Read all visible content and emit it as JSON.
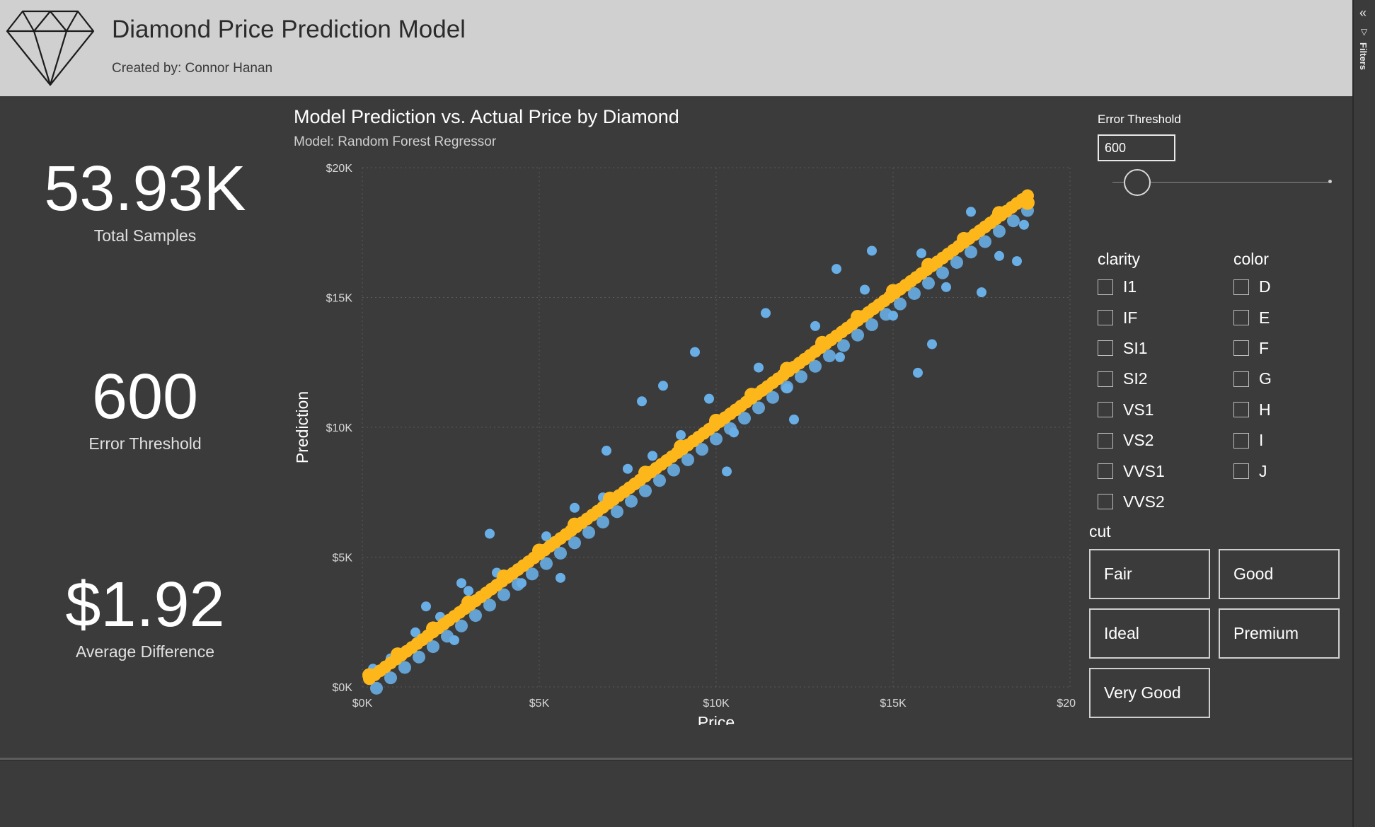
{
  "header": {
    "title": "Diamond Price Prediction Model",
    "subtitle": "Created by: Connor Hanan",
    "logo_icon": "diamond-icon"
  },
  "filters_rail": {
    "label": "Filters",
    "collapse_icon": "double-chevron-left-icon",
    "funnel_icon": "funnel-icon"
  },
  "kpis": [
    {
      "value": "53.93K",
      "label": "Total Samples"
    },
    {
      "value": "600",
      "label": "Error Threshold"
    },
    {
      "value": "$1.92",
      "label": "Average Difference"
    }
  ],
  "chart": {
    "title": "Model Prediction vs. Actual Price by Diamond",
    "subtitle": "Model: Random Forest Regressor"
  },
  "chart_data": {
    "type": "scatter",
    "title": "Model Prediction vs. Actual Price by Diamond",
    "subtitle": "Model: Random Forest Regressor",
    "xlabel": "Price",
    "ylabel": "Prediction",
    "xlim": [
      0,
      20000
    ],
    "ylim": [
      0,
      20000
    ],
    "x_ticks": [
      "$0K",
      "$5K",
      "$10K",
      "$15K",
      "$20K"
    ],
    "y_ticks": [
      "$0K",
      "$5K",
      "$10K",
      "$15K",
      "$20K"
    ],
    "grid": true,
    "colors": {
      "outside_threshold": "#6aaee6",
      "within_threshold": "#fdb71a"
    },
    "series": [
      {
        "x": [
          300,
          800,
          1500,
          2200,
          3000,
          3800,
          4500,
          5200,
          6000,
          6800,
          7500,
          8200,
          9000,
          9800,
          10500,
          11200,
          12000,
          12800,
          13500,
          14200,
          15000,
          15800,
          16500,
          17200,
          18000,
          18700,
          2800,
          3600,
          5600,
          4300,
          9400,
          8500,
          10300,
          12200,
          14400,
          17500,
          18500,
          15700,
          11400,
          6900,
          1800,
          2600,
          13400,
          16100,
          7900
        ],
        "y": [
          700,
          1100,
          2100,
          2700,
          3700,
          4400,
          4000,
          5800,
          6900,
          7300,
          8400,
          8900,
          9700,
          11100,
          9800,
          12300,
          11500,
          13900,
          12700,
          15300,
          14300,
          16700,
          15400,
          18300,
          16600,
          17800,
          4000,
          5900,
          4200,
          4400,
          12900,
          11600,
          8300,
          10300,
          16800,
          15200,
          16400,
          12100,
          14400,
          9100,
          3100,
          1800,
          16100,
          13200,
          11000
        ]
      },
      {
        "x": [
          200,
          1000,
          2000,
          3000,
          4000,
          5000,
          6000,
          7000,
          8000,
          9000,
          10000,
          11000,
          12000,
          13000,
          14000,
          15000,
          16000,
          17000,
          18000,
          18800
        ],
        "y": [
          450,
          1250,
          2250,
          3250,
          4250,
          5250,
          6250,
          7250,
          8250,
          9250,
          10250,
          11250,
          12250,
          13250,
          14250,
          15250,
          16250,
          17250,
          18250,
          18650
        ]
      }
    ]
  },
  "threshold": {
    "label": "Error Threshold",
    "value": "600",
    "slider_fraction": 0.1
  },
  "clarity": {
    "title": "clarity",
    "options": [
      "I1",
      "IF",
      "SI1",
      "SI2",
      "VS1",
      "VS2",
      "VVS1",
      "VVS2"
    ]
  },
  "color_filter": {
    "title": "color",
    "options": [
      "D",
      "E",
      "F",
      "G",
      "H",
      "I",
      "J"
    ]
  },
  "cut": {
    "title": "cut",
    "options": [
      "Fair",
      "Good",
      "Ideal",
      "Premium",
      "Very Good"
    ]
  }
}
